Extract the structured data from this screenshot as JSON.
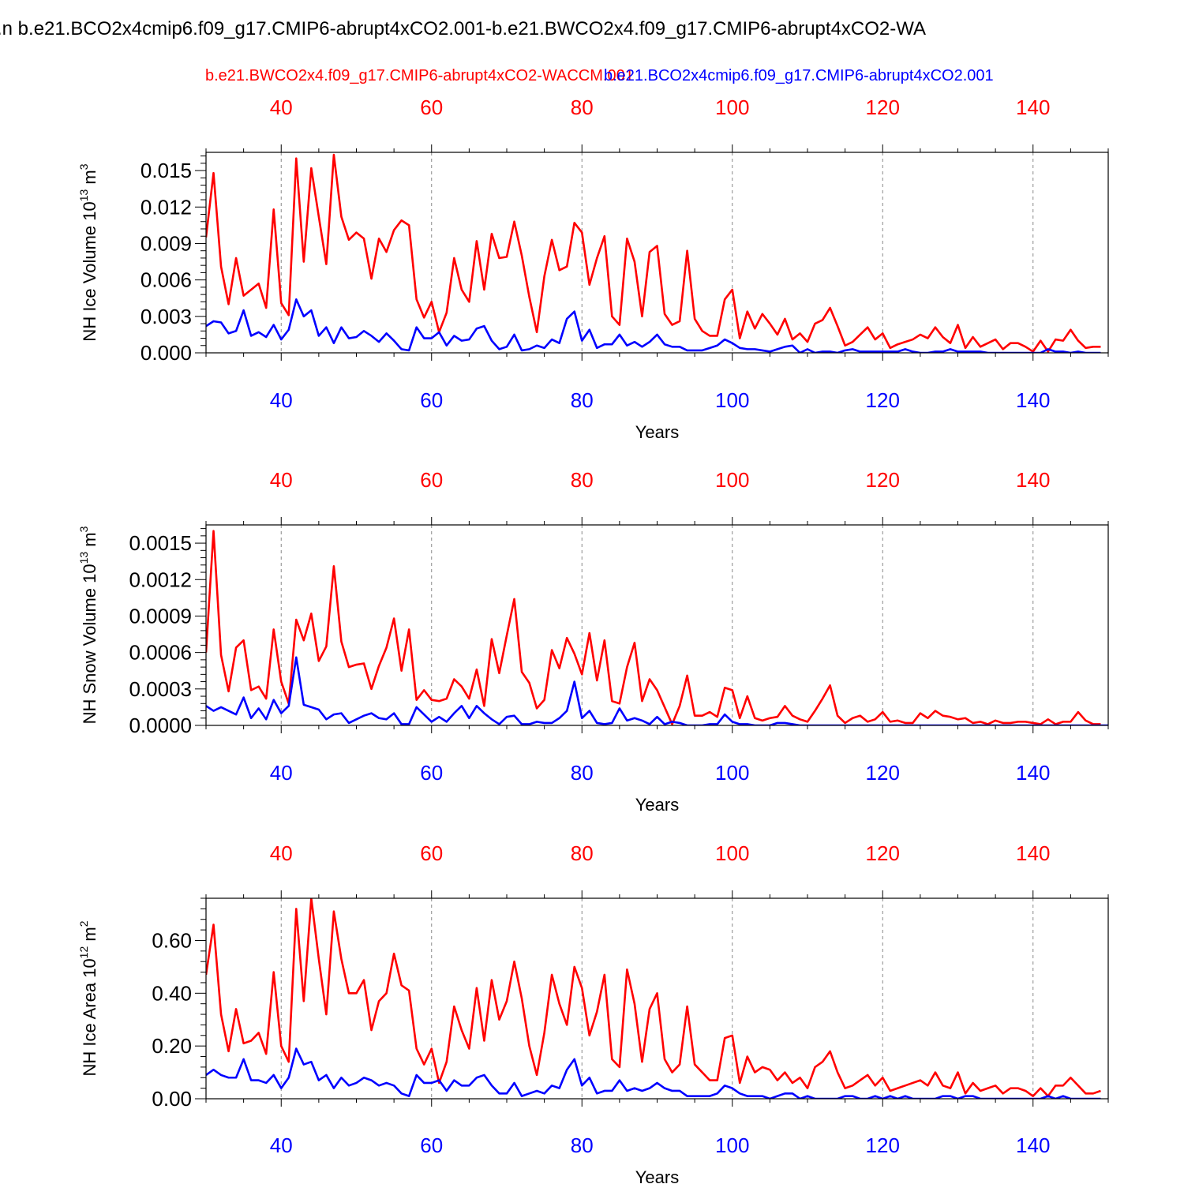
{
  "page_title": ".n b.e21.BCO2x4cmip6.f09_g17.CMIP6-abrupt4xCO2.001-b.e21.BWCO2x4.f09_g17.CMIP6-abrupt4xCO2-WA",
  "colors": {
    "red": "#ff0000",
    "blue": "#0000ff",
    "axis": "#000000",
    "grid": "#888888"
  },
  "legend": {
    "red": "b.e21.BWCO2x4.f09_g17.CMIP6-abrupt4xCO2-WACCM.001",
    "blue": "b.e21.BCO2x4cmip6.f09_g17.CMIP6-abrupt4xCO2.001"
  },
  "chart_data": [
    {
      "type": "line",
      "ylabel": "NH Ice Volume 10",
      "ylabel_exp": "13",
      "ylabel_unit": " m",
      "ylabel_unit_exp": "3",
      "xlabel": "Years",
      "xlim": [
        30,
        150
      ],
      "ylim": [
        0,
        0.0165
      ],
      "yticks": [
        0.0,
        0.003,
        0.006,
        0.009,
        0.012,
        0.015
      ],
      "ytick_labels": [
        "0.000",
        "0.003",
        "0.006",
        "0.009",
        "0.012",
        "0.015"
      ],
      "xticks": [
        40,
        60,
        80,
        100,
        120,
        140
      ],
      "xtick_labels": [
        "40",
        "60",
        "80",
        "100",
        "120",
        "140"
      ],
      "series": [
        {
          "name": "WACCM (red)",
          "color": "red",
          "x_start": 30,
          "values": [
            0.0095,
            0.0148,
            0.0071,
            0.004,
            0.0078,
            0.0047,
            0.0052,
            0.0057,
            0.0037,
            0.0118,
            0.0041,
            0.0031,
            0.016,
            0.0075,
            0.0152,
            0.0112,
            0.0073,
            0.0163,
            0.0112,
            0.0093,
            0.0099,
            0.0094,
            0.0061,
            0.0094,
            0.0083,
            0.0101,
            0.0109,
            0.0105,
            0.0044,
            0.0029,
            0.0042,
            0.0017,
            0.0033,
            0.0078,
            0.0052,
            0.0042,
            0.0092,
            0.0052,
            0.0098,
            0.0078,
            0.0079,
            0.0108,
            0.008,
            0.0046,
            0.0017,
            0.0063,
            0.0093,
            0.0068,
            0.0071,
            0.0107,
            0.0099,
            0.0056,
            0.0078,
            0.0096,
            0.003,
            0.0023,
            0.0094,
            0.0075,
            0.003,
            0.0083,
            0.0088,
            0.0032,
            0.0023,
            0.0026,
            0.0084,
            0.0028,
            0.0018,
            0.0014,
            0.0014,
            0.0044,
            0.0052,
            0.0012,
            0.0034,
            0.002,
            0.0032,
            0.0024,
            0.0015,
            0.0028,
            0.0011,
            0.0016,
            0.0009,
            0.0024,
            0.0027,
            0.0037,
            0.0022,
            0.0006,
            0.0009,
            0.0015,
            0.0021,
            0.0011,
            0.0016,
            0.0004,
            0.0007,
            0.0009,
            0.0011,
            0.0015,
            0.0012,
            0.0021,
            0.0013,
            0.0008,
            0.0023,
            0.0004,
            0.0013,
            0.0005,
            0.0008,
            0.0011,
            0.0003,
            0.0008,
            0.0008,
            0.0005,
            0.0001,
            0.001,
            0.0001,
            0.0011,
            0.001,
            0.0019,
            0.001,
            0.0004,
            0.0005,
            0.0005
          ]
        },
        {
          "name": "CMIP6 (blue)",
          "color": "blue",
          "x_start": 30,
          "values": [
            0.0022,
            0.0026,
            0.0025,
            0.0016,
            0.0018,
            0.0035,
            0.0014,
            0.0017,
            0.0013,
            0.0023,
            0.0011,
            0.0019,
            0.0044,
            0.003,
            0.0035,
            0.0014,
            0.0021,
            0.0008,
            0.0021,
            0.0012,
            0.0013,
            0.0018,
            0.0014,
            0.0009,
            0.0016,
            0.001,
            0.0003,
            0.0002,
            0.0021,
            0.0012,
            0.0012,
            0.0017,
            0.0006,
            0.0014,
            0.001,
            0.0011,
            0.002,
            0.0022,
            0.001,
            0.0003,
            0.0005,
            0.0015,
            0.0002,
            0.0003,
            0.0006,
            0.0004,
            0.0011,
            0.0008,
            0.0028,
            0.0034,
            0.001,
            0.0019,
            0.0004,
            0.0007,
            0.0007,
            0.0015,
            0.0006,
            0.0009,
            0.0005,
            0.0009,
            0.0015,
            0.0007,
            0.0005,
            0.0005,
            0.0002,
            0.0002,
            0.0002,
            0.0004,
            0.0006,
            0.0011,
            0.0008,
            0.0004,
            0.0003,
            0.0003,
            0.0002,
            0.0001,
            0.0003,
            0.0005,
            0.0006,
            0.0,
            0.0003,
            0.0,
            0.0001,
            0.0001,
            0.0,
            0.0002,
            0.0003,
            0.0001,
            0.0001,
            0.0001,
            0.0001,
            0.0001,
            0.0001,
            0.0003,
            0.0001,
            0.0,
            0.0,
            0.0001,
            0.0001,
            0.0003,
            0.0001,
            0.0001,
            0.0001,
            0.0001,
            0.0,
            0.0,
            0.0,
            0.0,
            0.0,
            0.0,
            0.0,
            0.0,
            0.0003,
            0.0001,
            0.0001,
            0.0,
            0.0001,
            0.0,
            0.0,
            0.0
          ]
        }
      ]
    },
    {
      "type": "line",
      "ylabel": "NH Snow Volume 10",
      "ylabel_exp": "13",
      "ylabel_unit": " m",
      "ylabel_unit_exp": "3",
      "xlabel": "Years",
      "xlim": [
        30,
        150
      ],
      "ylim": [
        0,
        0.00165
      ],
      "yticks": [
        0.0,
        0.0003,
        0.0006,
        0.0009,
        0.0012,
        0.0015
      ],
      "ytick_labels": [
        "0.0000",
        "0.0003",
        "0.0006",
        "0.0009",
        "0.0012",
        "0.0015"
      ],
      "xticks": [
        40,
        60,
        80,
        100,
        120,
        140
      ],
      "xtick_labels": [
        "40",
        "60",
        "80",
        "100",
        "120",
        "140"
      ],
      "series": [
        {
          "name": "WACCM (red)",
          "color": "red",
          "x_start": 30,
          "values": [
            0.0006,
            0.0016,
            0.00058,
            0.00028,
            0.00064,
            0.0007,
            0.00029,
            0.00032,
            0.00022,
            0.00079,
            0.00036,
            0.00018,
            0.00087,
            0.0007,
            0.00092,
            0.00053,
            0.00065,
            0.00131,
            0.00069,
            0.00048,
            0.0005,
            0.00051,
            0.0003,
            0.00049,
            0.00064,
            0.00088,
            0.00045,
            0.00079,
            0.00021,
            0.00029,
            0.00021,
            0.0002,
            0.00022,
            0.00038,
            0.00032,
            0.00022,
            0.00046,
            0.00016,
            0.00071,
            0.00043,
            0.00074,
            0.00104,
            0.00044,
            0.00035,
            0.00014,
            0.00021,
            0.00062,
            0.00047,
            0.00072,
            0.00059,
            0.00042,
            0.00076,
            0.00037,
            0.0007,
            0.0002,
            0.00018,
            0.00048,
            0.00068,
            0.0002,
            0.00038,
            0.00029,
            0.00015,
            1e-05,
            0.00016,
            0.00041,
            8e-05,
            8e-05,
            0.00011,
            7e-05,
            0.00031,
            0.00029,
            6e-05,
            0.00024,
            6e-05,
            4e-05,
            6e-05,
            7e-05,
            0.00016,
            8e-05,
            5e-05,
            3e-05,
            0.00012,
            0.00022,
            0.00033,
            8e-05,
            2e-05,
            6e-05,
            8e-05,
            3e-05,
            5e-05,
            0.00011,
            3e-05,
            4e-05,
            2e-05,
            2e-05,
            0.0001,
            6e-05,
            0.00012,
            8e-05,
            7e-05,
            5e-05,
            6e-05,
            2e-05,
            3e-05,
            1e-05,
            4e-05,
            2e-05,
            2e-05,
            3e-05,
            3e-05,
            2e-05,
            1e-05,
            5e-05,
            1e-05,
            3e-05,
            3e-05,
            0.00011,
            4e-05,
            1e-05,
            1e-05
          ]
        },
        {
          "name": "CMIP6 (blue)",
          "color": "blue",
          "x_start": 30,
          "values": [
            0.00016,
            0.00012,
            0.00015,
            0.00012,
            9e-05,
            0.00023,
            6e-05,
            0.00014,
            5e-05,
            0.00021,
            0.0001,
            0.00016,
            0.00056,
            0.00017,
            0.00015,
            0.00013,
            5e-05,
            9e-05,
            0.0001,
            2e-05,
            5e-05,
            8e-05,
            0.0001,
            6e-05,
            5e-05,
            0.0001,
            1e-05,
            1e-05,
            0.00015,
            9e-05,
            3e-05,
            7e-05,
            3e-05,
            0.0001,
            0.00016,
            6e-05,
            0.00016,
            0.0001,
            5e-05,
            1e-05,
            7e-05,
            8e-05,
            1e-05,
            1e-05,
            3e-05,
            2e-05,
            2e-05,
            6e-05,
            0.00012,
            0.00036,
            6e-05,
            0.00012,
            2e-05,
            1e-05,
            2e-05,
            0.00014,
            4e-05,
            6e-05,
            4e-05,
            1e-05,
            7e-05,
            1e-05,
            3e-05,
            2e-05,
            0.0,
            0.0,
            0.0,
            1e-05,
            1e-05,
            9e-05,
            3e-05,
            1e-05,
            1e-05,
            0.0,
            0.0,
            0.0,
            2e-05,
            2e-05,
            1e-05,
            0.0,
            0.0,
            0.0,
            0.0,
            0.0,
            0.0,
            0.0,
            0.0,
            0.0,
            0.0,
            0.0,
            0.0,
            0.0,
            0.0,
            0.0,
            0.0,
            0.0,
            0.0,
            0.0,
            0.0,
            0.0,
            0.0,
            0.0,
            0.0,
            0.0,
            0.0,
            0.0,
            0.0,
            0.0,
            0.0,
            0.0,
            0.0,
            0.0,
            0.0,
            0.0,
            0.0,
            0.0,
            0.0,
            0.0,
            0.0,
            0.0,
            0.0
          ]
        }
      ]
    },
    {
      "type": "line",
      "ylabel": "NH Ice Area 10",
      "ylabel_exp": "12",
      "ylabel_unit": " m",
      "ylabel_unit_exp": "2",
      "xlabel": "Years",
      "xlim": [
        30,
        150
      ],
      "ylim": [
        0,
        0.76
      ],
      "yticks": [
        0.0,
        0.2,
        0.4,
        0.6
      ],
      "ytick_labels": [
        "0.00",
        "0.20",
        "0.40",
        "0.60"
      ],
      "xticks": [
        40,
        60,
        80,
        100,
        120,
        140
      ],
      "xtick_labels": [
        "40",
        "60",
        "80",
        "100",
        "120",
        "140"
      ],
      "series": [
        {
          "name": "WACCM (red)",
          "color": "red",
          "x_start": 30,
          "values": [
            0.47,
            0.66,
            0.32,
            0.18,
            0.34,
            0.21,
            0.22,
            0.25,
            0.17,
            0.48,
            0.2,
            0.14,
            0.72,
            0.37,
            0.76,
            0.53,
            0.32,
            0.71,
            0.53,
            0.4,
            0.4,
            0.45,
            0.26,
            0.37,
            0.4,
            0.55,
            0.43,
            0.41,
            0.19,
            0.13,
            0.19,
            0.06,
            0.14,
            0.35,
            0.26,
            0.19,
            0.42,
            0.22,
            0.45,
            0.3,
            0.37,
            0.52,
            0.38,
            0.2,
            0.09,
            0.25,
            0.47,
            0.36,
            0.28,
            0.5,
            0.42,
            0.24,
            0.33,
            0.47,
            0.15,
            0.12,
            0.49,
            0.36,
            0.14,
            0.34,
            0.4,
            0.15,
            0.1,
            0.13,
            0.35,
            0.13,
            0.1,
            0.07,
            0.07,
            0.23,
            0.24,
            0.06,
            0.16,
            0.1,
            0.12,
            0.11,
            0.07,
            0.1,
            0.06,
            0.08,
            0.04,
            0.12,
            0.14,
            0.18,
            0.1,
            0.04,
            0.05,
            0.07,
            0.09,
            0.05,
            0.08,
            0.03,
            0.04,
            0.05,
            0.06,
            0.07,
            0.05,
            0.1,
            0.05,
            0.04,
            0.1,
            0.02,
            0.06,
            0.03,
            0.04,
            0.05,
            0.02,
            0.04,
            0.04,
            0.03,
            0.01,
            0.04,
            0.01,
            0.05,
            0.05,
            0.08,
            0.05,
            0.02,
            0.02,
            0.03
          ]
        },
        {
          "name": "CMIP6 (blue)",
          "color": "blue",
          "x_start": 30,
          "values": [
            0.09,
            0.11,
            0.09,
            0.08,
            0.08,
            0.15,
            0.07,
            0.07,
            0.06,
            0.09,
            0.04,
            0.08,
            0.19,
            0.13,
            0.14,
            0.07,
            0.09,
            0.04,
            0.08,
            0.05,
            0.06,
            0.08,
            0.07,
            0.05,
            0.06,
            0.05,
            0.02,
            0.01,
            0.09,
            0.06,
            0.06,
            0.07,
            0.03,
            0.07,
            0.05,
            0.05,
            0.08,
            0.09,
            0.05,
            0.02,
            0.02,
            0.06,
            0.01,
            0.02,
            0.03,
            0.02,
            0.05,
            0.04,
            0.11,
            0.15,
            0.05,
            0.08,
            0.02,
            0.03,
            0.03,
            0.07,
            0.03,
            0.04,
            0.03,
            0.04,
            0.06,
            0.04,
            0.03,
            0.03,
            0.01,
            0.01,
            0.01,
            0.01,
            0.02,
            0.05,
            0.04,
            0.02,
            0.01,
            0.01,
            0.01,
            0.0,
            0.01,
            0.02,
            0.02,
            0.0,
            0.01,
            0.0,
            0.0,
            0.0,
            0.0,
            0.01,
            0.01,
            0.0,
            0.0,
            0.01,
            0.0,
            0.01,
            0.0,
            0.01,
            0.0,
            0.0,
            0.0,
            0.0,
            0.01,
            0.01,
            0.0,
            0.01,
            0.01,
            0.0,
            0.0,
            0.0,
            0.0,
            0.0,
            0.0,
            0.0,
            0.0,
            0.0,
            0.01,
            0.0,
            0.01,
            0.0,
            0.0,
            0.0,
            0.0,
            0.0
          ]
        }
      ]
    }
  ]
}
